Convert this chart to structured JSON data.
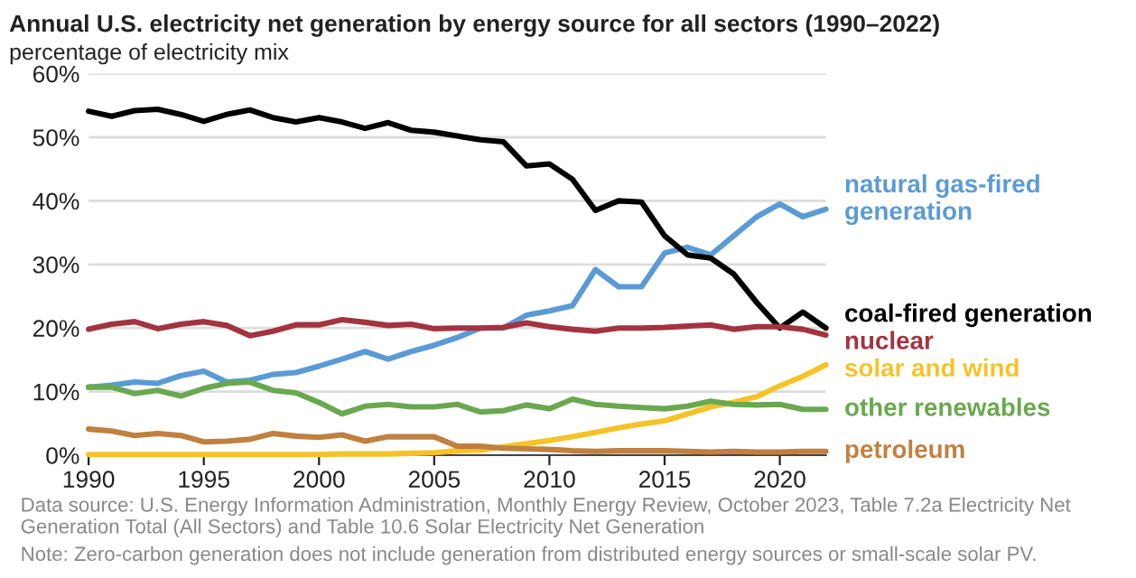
{
  "chart_data": {
    "type": "line",
    "title": "Annual U.S. electricity net generation by energy source for all sectors (1990–2022)",
    "subtitle": "percentage of electricity mix",
    "x": [
      1990,
      1991,
      1992,
      1993,
      1994,
      1995,
      1996,
      1997,
      1998,
      1999,
      2000,
      2001,
      2002,
      2003,
      2004,
      2005,
      2006,
      2007,
      2008,
      2009,
      2010,
      2011,
      2012,
      2013,
      2014,
      2015,
      2016,
      2017,
      2018,
      2019,
      2020,
      2021,
      2022
    ],
    "series": [
      {
        "name": "natural gas-fired generation",
        "color": "#5a9bd5",
        "values": [
          10.7,
          11.0,
          11.5,
          11.3,
          12.5,
          13.2,
          11.5,
          11.8,
          12.7,
          13.0,
          14.0,
          15.1,
          16.3,
          15.1,
          16.3,
          17.3,
          18.5,
          20.0,
          20.0,
          22.0,
          22.7,
          23.5,
          29.2,
          26.5,
          26.5,
          31.8,
          32.7,
          31.5,
          34.5,
          37.5,
          39.5,
          37.5,
          38.7
        ]
      },
      {
        "name": "coal-fired generation",
        "color": "#000000",
        "values": [
          54.1,
          53.3,
          54.2,
          54.4,
          53.6,
          52.5,
          53.6,
          54.3,
          53.1,
          52.4,
          53.1,
          52.4,
          51.4,
          52.3,
          51.1,
          50.8,
          50.2,
          49.6,
          49.3,
          45.5,
          45.8,
          43.4,
          38.5,
          40.0,
          39.8,
          34.5,
          31.5,
          31.0,
          28.5,
          24.0,
          20.0,
          22.5,
          20.0
        ]
      },
      {
        "name": "nuclear",
        "color": "#a33340",
        "values": [
          19.8,
          20.6,
          21.0,
          19.9,
          20.6,
          21.0,
          20.4,
          18.8,
          19.5,
          20.5,
          20.5,
          21.3,
          20.9,
          20.4,
          20.6,
          19.9,
          20.0,
          20.0,
          20.1,
          20.8,
          20.2,
          19.8,
          19.5,
          20.0,
          20.0,
          20.1,
          20.3,
          20.5,
          19.8,
          20.2,
          20.2,
          19.8,
          18.9
        ]
      },
      {
        "name": "solar and wind",
        "color": "#f5c328",
        "values": [
          0.1,
          0.1,
          0.1,
          0.1,
          0.1,
          0.1,
          0.1,
          0.1,
          0.1,
          0.1,
          0.1,
          0.2,
          0.2,
          0.2,
          0.3,
          0.4,
          0.7,
          0.8,
          1.3,
          1.8,
          2.3,
          2.9,
          3.6,
          4.3,
          4.9,
          5.4,
          6.5,
          7.6,
          8.3,
          9.2,
          10.9,
          12.4,
          14.2
        ]
      },
      {
        "name": "other renewables",
        "color": "#6aa84f",
        "values": [
          10.7,
          10.7,
          9.7,
          10.2,
          9.3,
          10.5,
          11.3,
          11.5,
          10.2,
          9.8,
          8.3,
          6.5,
          7.7,
          8.0,
          7.6,
          7.6,
          8.0,
          6.8,
          7.0,
          7.9,
          7.3,
          8.8,
          8.0,
          7.7,
          7.5,
          7.3,
          7.7,
          8.5,
          8.0,
          7.9,
          8.0,
          7.2,
          7.2
        ]
      },
      {
        "name": "petroleum",
        "color": "#c08040",
        "values": [
          4.1,
          3.8,
          3.1,
          3.4,
          3.1,
          2.1,
          2.2,
          2.5,
          3.4,
          3.0,
          2.8,
          3.2,
          2.2,
          2.9,
          2.9,
          2.9,
          1.4,
          1.4,
          1.1,
          1.0,
          0.9,
          0.7,
          0.6,
          0.7,
          0.7,
          0.7,
          0.6,
          0.5,
          0.6,
          0.5,
          0.5,
          0.6,
          0.6
        ]
      }
    ],
    "xlim": [
      1990,
      2022
    ],
    "xticks": [
      1990,
      1995,
      2000,
      2005,
      2010,
      2015,
      2020
    ],
    "ylim": [
      0,
      60
    ],
    "yticks": [
      {
        "value": 0,
        "label": "0%"
      },
      {
        "value": 10,
        "label": "10%"
      },
      {
        "value": 20,
        "label": "20%"
      },
      {
        "value": 30,
        "label": "30%"
      },
      {
        "value": 40,
        "label": "40%"
      },
      {
        "value": 50,
        "label": "50%"
      },
      {
        "value": 60,
        "label": "60%"
      }
    ],
    "grid": "y",
    "legend": "right",
    "marker": "none",
    "line_style": "solid",
    "annotations": [
      "Data source: U.S. Energy Information Administration, Monthly Energy Review, October 2023, Table 7.2a Electricity Net Generation Total (All Sectors) and Table 10.6 Solar Electricity Net Generation",
      "Note: Zero-carbon generation does not include generation from distributed energy sources or small-scale solar PV."
    ]
  }
}
